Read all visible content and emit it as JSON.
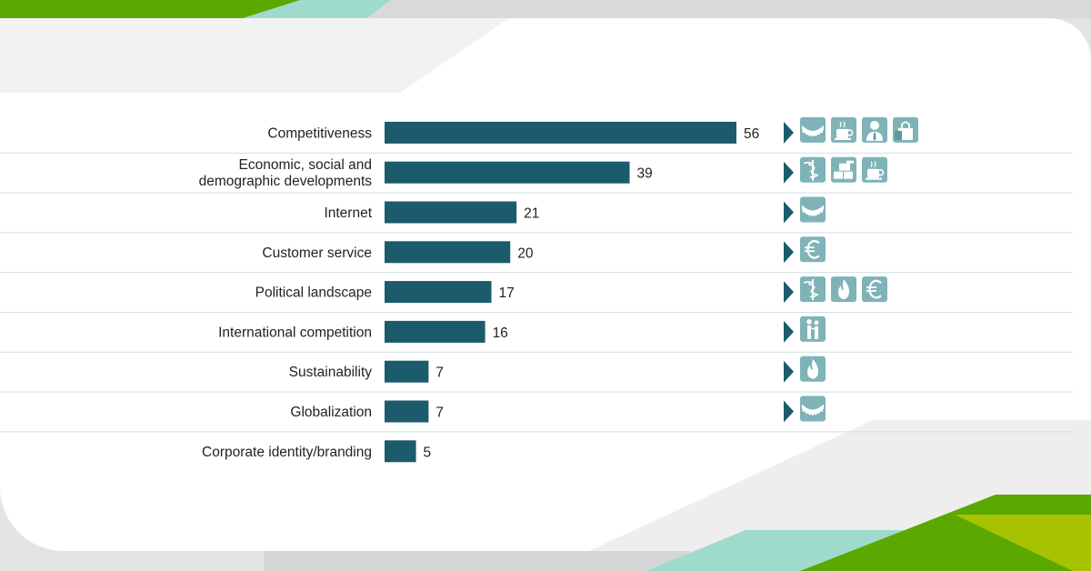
{
  "theme": {
    "bar_color": "#1b5b6b",
    "icon_bg": "#7fb3b8",
    "icon_dark": "#5a9aa1",
    "divider": "#cfe0e3",
    "green_light": "#a7c200",
    "green_mid": "#5aa800",
    "green_dark": "#3d8f00",
    "teal_light": "#9edbcc"
  },
  "chart_data": {
    "type": "bar",
    "orientation": "horizontal",
    "title": "",
    "xlabel": "",
    "ylabel": "",
    "xlim": [
      0,
      60
    ],
    "grid": false,
    "categories": [
      [
        "Competitiveness"
      ],
      [
        "Economic, social and",
        "demographic developments"
      ],
      [
        "Internet"
      ],
      [
        "Customer service"
      ],
      [
        "Political landscape"
      ],
      [
        "International competition"
      ],
      [
        "Sustainability"
      ],
      [
        "Globalization"
      ],
      [
        "Corporate identity/branding"
      ]
    ],
    "values": [
      56,
      39,
      21,
      20,
      17,
      16,
      7,
      7,
      5
    ],
    "row_icons": [
      [
        "gear-icon",
        "coffee-cup-icon",
        "businessman-icon",
        "shopping-bag-icon"
      ],
      [
        "caduceus-icon",
        "building-blocks-icon",
        "coffee-cup-icon"
      ],
      [
        "gear-icon"
      ],
      [
        "euro-icon"
      ],
      [
        "caduceus-icon",
        "flame-icon",
        "euro-icon"
      ],
      [
        "family-icon"
      ],
      [
        "flame-icon"
      ],
      [
        "gear-icon"
      ],
      []
    ]
  }
}
